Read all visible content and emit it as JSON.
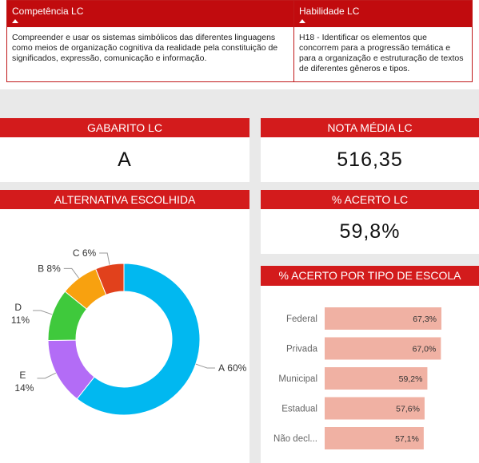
{
  "table": {
    "header": [
      "Competência LC",
      "Habilidade LC"
    ],
    "rows": [
      [
        "Compreender e usar os sistemas simbólicos das diferentes linguagens como meios de organização cognitiva da realidade pela constituição de significados, expressão, comunicação e informação.",
        "H18 - Identificar os elementos que concorrem para a progressão temática e para a organização e estruturação de textos de diferentes gêneros e tipos."
      ]
    ]
  },
  "cards": [
    {
      "title": "GABARITO LC",
      "value": "A"
    },
    {
      "title": "NOTA MÉDIA LC",
      "value": "516,35"
    },
    {
      "title": "% ACERTO LC",
      "value": "59,8%"
    }
  ],
  "chart_data": [
    {
      "type": "pie",
      "title": "ALTERNATIVA ESCOLHIDA",
      "donut": true,
      "categories": [
        "A",
        "E",
        "D",
        "B",
        "C"
      ],
      "values": [
        60,
        14,
        11,
        8,
        6
      ],
      "value_labels": [
        "60%",
        "14%",
        "11%",
        "8%",
        "6%"
      ],
      "colors": [
        "#01b8f0",
        "#b36cf6",
        "#3fc93c",
        "#f8a10f",
        "#e1411c"
      ]
    },
    {
      "type": "bar",
      "orientation": "horizontal",
      "title": "% ACERTO POR TIPO DE ESCOLA",
      "categories": [
        "Federal",
        "Privada",
        "Municipal",
        "Estadual",
        "Não decl..."
      ],
      "values": [
        67.3,
        67.0,
        59.2,
        57.6,
        57.1
      ],
      "value_labels": [
        "67,3%",
        "67,0%",
        "59,2%",
        "57,6%",
        "57,1%"
      ],
      "color": "#f0b1a3"
    }
  ]
}
